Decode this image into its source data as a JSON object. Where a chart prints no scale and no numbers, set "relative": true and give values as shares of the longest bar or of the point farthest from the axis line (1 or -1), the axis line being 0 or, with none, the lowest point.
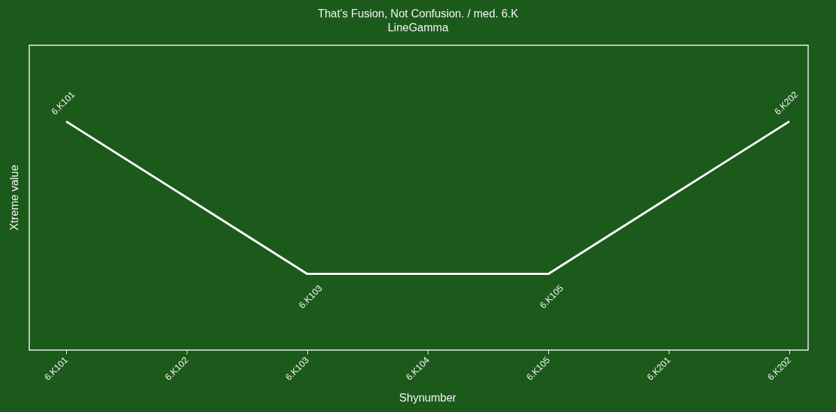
{
  "chart_data": {
    "type": "line",
    "title": "That's Fusion, Not Confusion. / med. 6.K",
    "subtitle": "LineGamma",
    "xlabel": "Shynumber",
    "ylabel": "Xtreme value",
    "relative": true,
    "categories": [
      "6.K101",
      "6.K102",
      "6.K103",
      "6.K104",
      "6.K105",
      "6.K201",
      "6.K202"
    ],
    "series": [
      {
        "color": "#ffffff",
        "values": [
          1,
          0.667,
          0.333,
          0.333,
          0.333,
          0.667,
          1
        ]
      }
    ],
    "annotations": [
      {
        "text": "6.K101",
        "x": "6.K101",
        "y": 1
      },
      {
        "text": "6.K103",
        "x": "6.K103",
        "y": 0.333
      },
      {
        "text": "6.K105",
        "x": "6.K105",
        "y": 0.333
      },
      {
        "text": "6.K202",
        "x": "6.K202",
        "y": 1
      }
    ],
    "grid": false,
    "marker": "none",
    "line_style": "solid"
  }
}
